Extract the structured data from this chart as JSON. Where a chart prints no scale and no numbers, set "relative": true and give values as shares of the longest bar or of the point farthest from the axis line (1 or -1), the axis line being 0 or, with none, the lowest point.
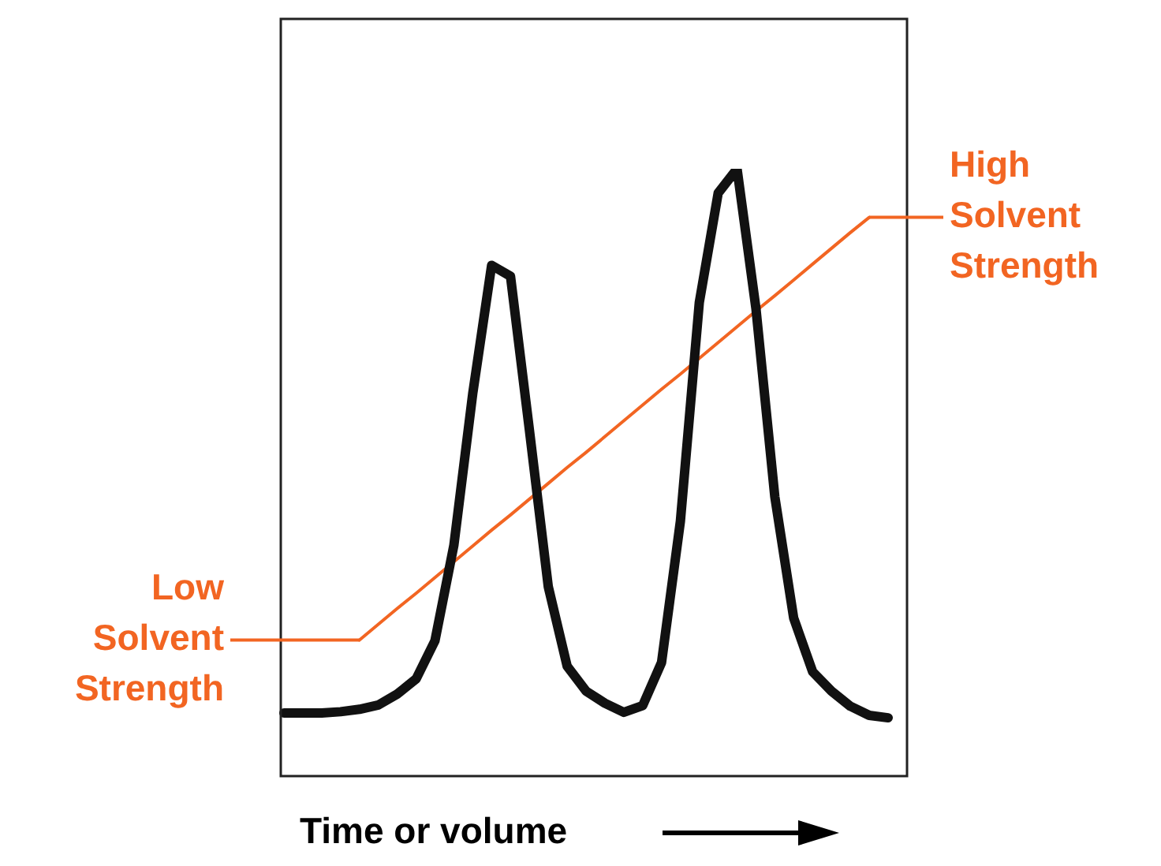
{
  "chart_data": {
    "type": "line",
    "relative": true,
    "xlabel": "Time or volume",
    "legend": false,
    "marker": "none",
    "categories": [
      null,
      null,
      null,
      null,
      null,
      null,
      null,
      null,
      null,
      null,
      null,
      null,
      null,
      null,
      null,
      null,
      null,
      null,
      null,
      null,
      null,
      null,
      null,
      null,
      null,
      null,
      null,
      null,
      null,
      null,
      null,
      null,
      null
    ],
    "series": [
      {
        "color": "#111111",
        "values": [
          0.104,
          0.104,
          0.104,
          0.106,
          0.11,
          0.117,
          0.135,
          0.16,
          0.223,
          0.38,
          0.63,
          0.841,
          0.823,
          0.57,
          0.312,
          0.181,
          0.14,
          0.12,
          0.105,
          0.116,
          0.187,
          0.42,
          0.78,
          0.96,
          1,
          0.77,
          0.46,
          0.26,
          0.172,
          0.14,
          0.115,
          0.1,
          0.096
        ]
      },
      {
        "color": "#f26522",
        "values": [
          null,
          null,
          null,
          null,
          0.224,
          0.25,
          0.276,
          0.301,
          0.327,
          0.353,
          0.379,
          0.405,
          0.43,
          0.456,
          0.482,
          0.508,
          0.533,
          0.559,
          0.585,
          0.611,
          0.637,
          0.662,
          0.688,
          0.714,
          0.74,
          0.766,
          0.791,
          0.817,
          0.843,
          0.869,
          0.895,
          0.92,
          null
        ]
      }
    ],
    "annotations": [
      "Low Solvent Strength",
      "High Solvent Strength"
    ]
  }
}
